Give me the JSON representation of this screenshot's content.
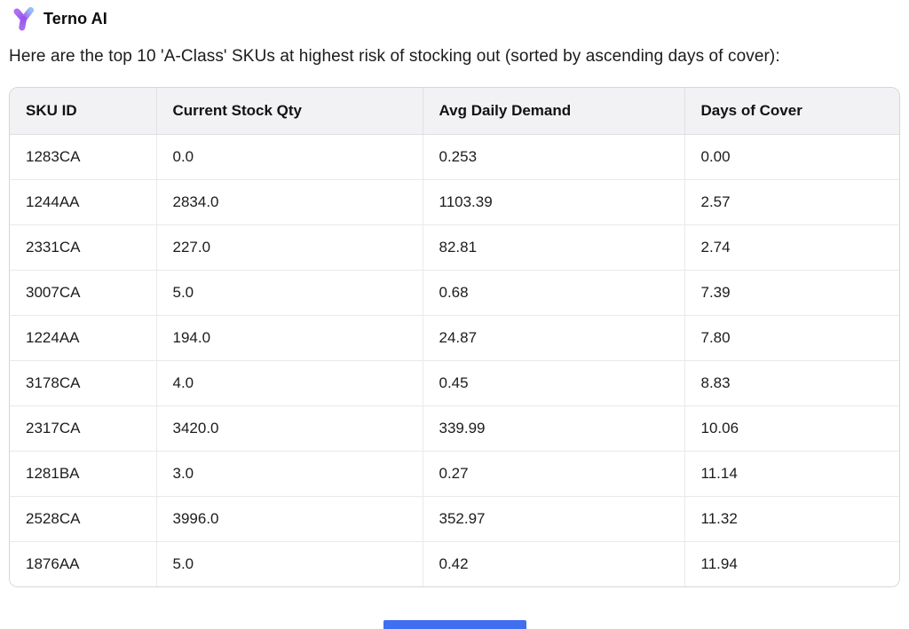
{
  "header": {
    "app_name": "Terno AI",
    "logo_icon": "terno-logo-icon"
  },
  "message": {
    "text": "Here are the top 10 'A-Class' SKUs at highest risk of stocking out (sorted by ascending days of cover):"
  },
  "table": {
    "columns": [
      "SKU ID",
      "Current Stock Qty",
      "Avg Daily Demand",
      "Days of Cover"
    ],
    "rows": [
      [
        "1283CA",
        "0.0",
        "0.253",
        "0.00"
      ],
      [
        "1244AA",
        "2834.0",
        "1103.39",
        "2.57"
      ],
      [
        "2331CA",
        "227.0",
        "82.81",
        "2.74"
      ],
      [
        "3007CA",
        "5.0",
        "0.68",
        "7.39"
      ],
      [
        "1224AA",
        "194.0",
        "24.87",
        "7.80"
      ],
      [
        "3178CA",
        "4.0",
        "0.45",
        "8.83"
      ],
      [
        "2317CA",
        "3420.0",
        "339.99",
        "10.06"
      ],
      [
        "1281BA",
        "3.0",
        "0.27",
        "11.14"
      ],
      [
        "2528CA",
        "3996.0",
        "352.97",
        "11.32"
      ],
      [
        "1876AA",
        "5.0",
        "0.42",
        "11.94"
      ]
    ]
  },
  "colors": {
    "logo_purple": "#a35cf0",
    "logo_purple_dark": "#8b5cf6",
    "logo_blue_tip": "#8fc1fb",
    "table_header_bg": "#f2f2f4",
    "table_border": "#d6d6db",
    "scrollbar_blue": "#3f6ff0"
  }
}
